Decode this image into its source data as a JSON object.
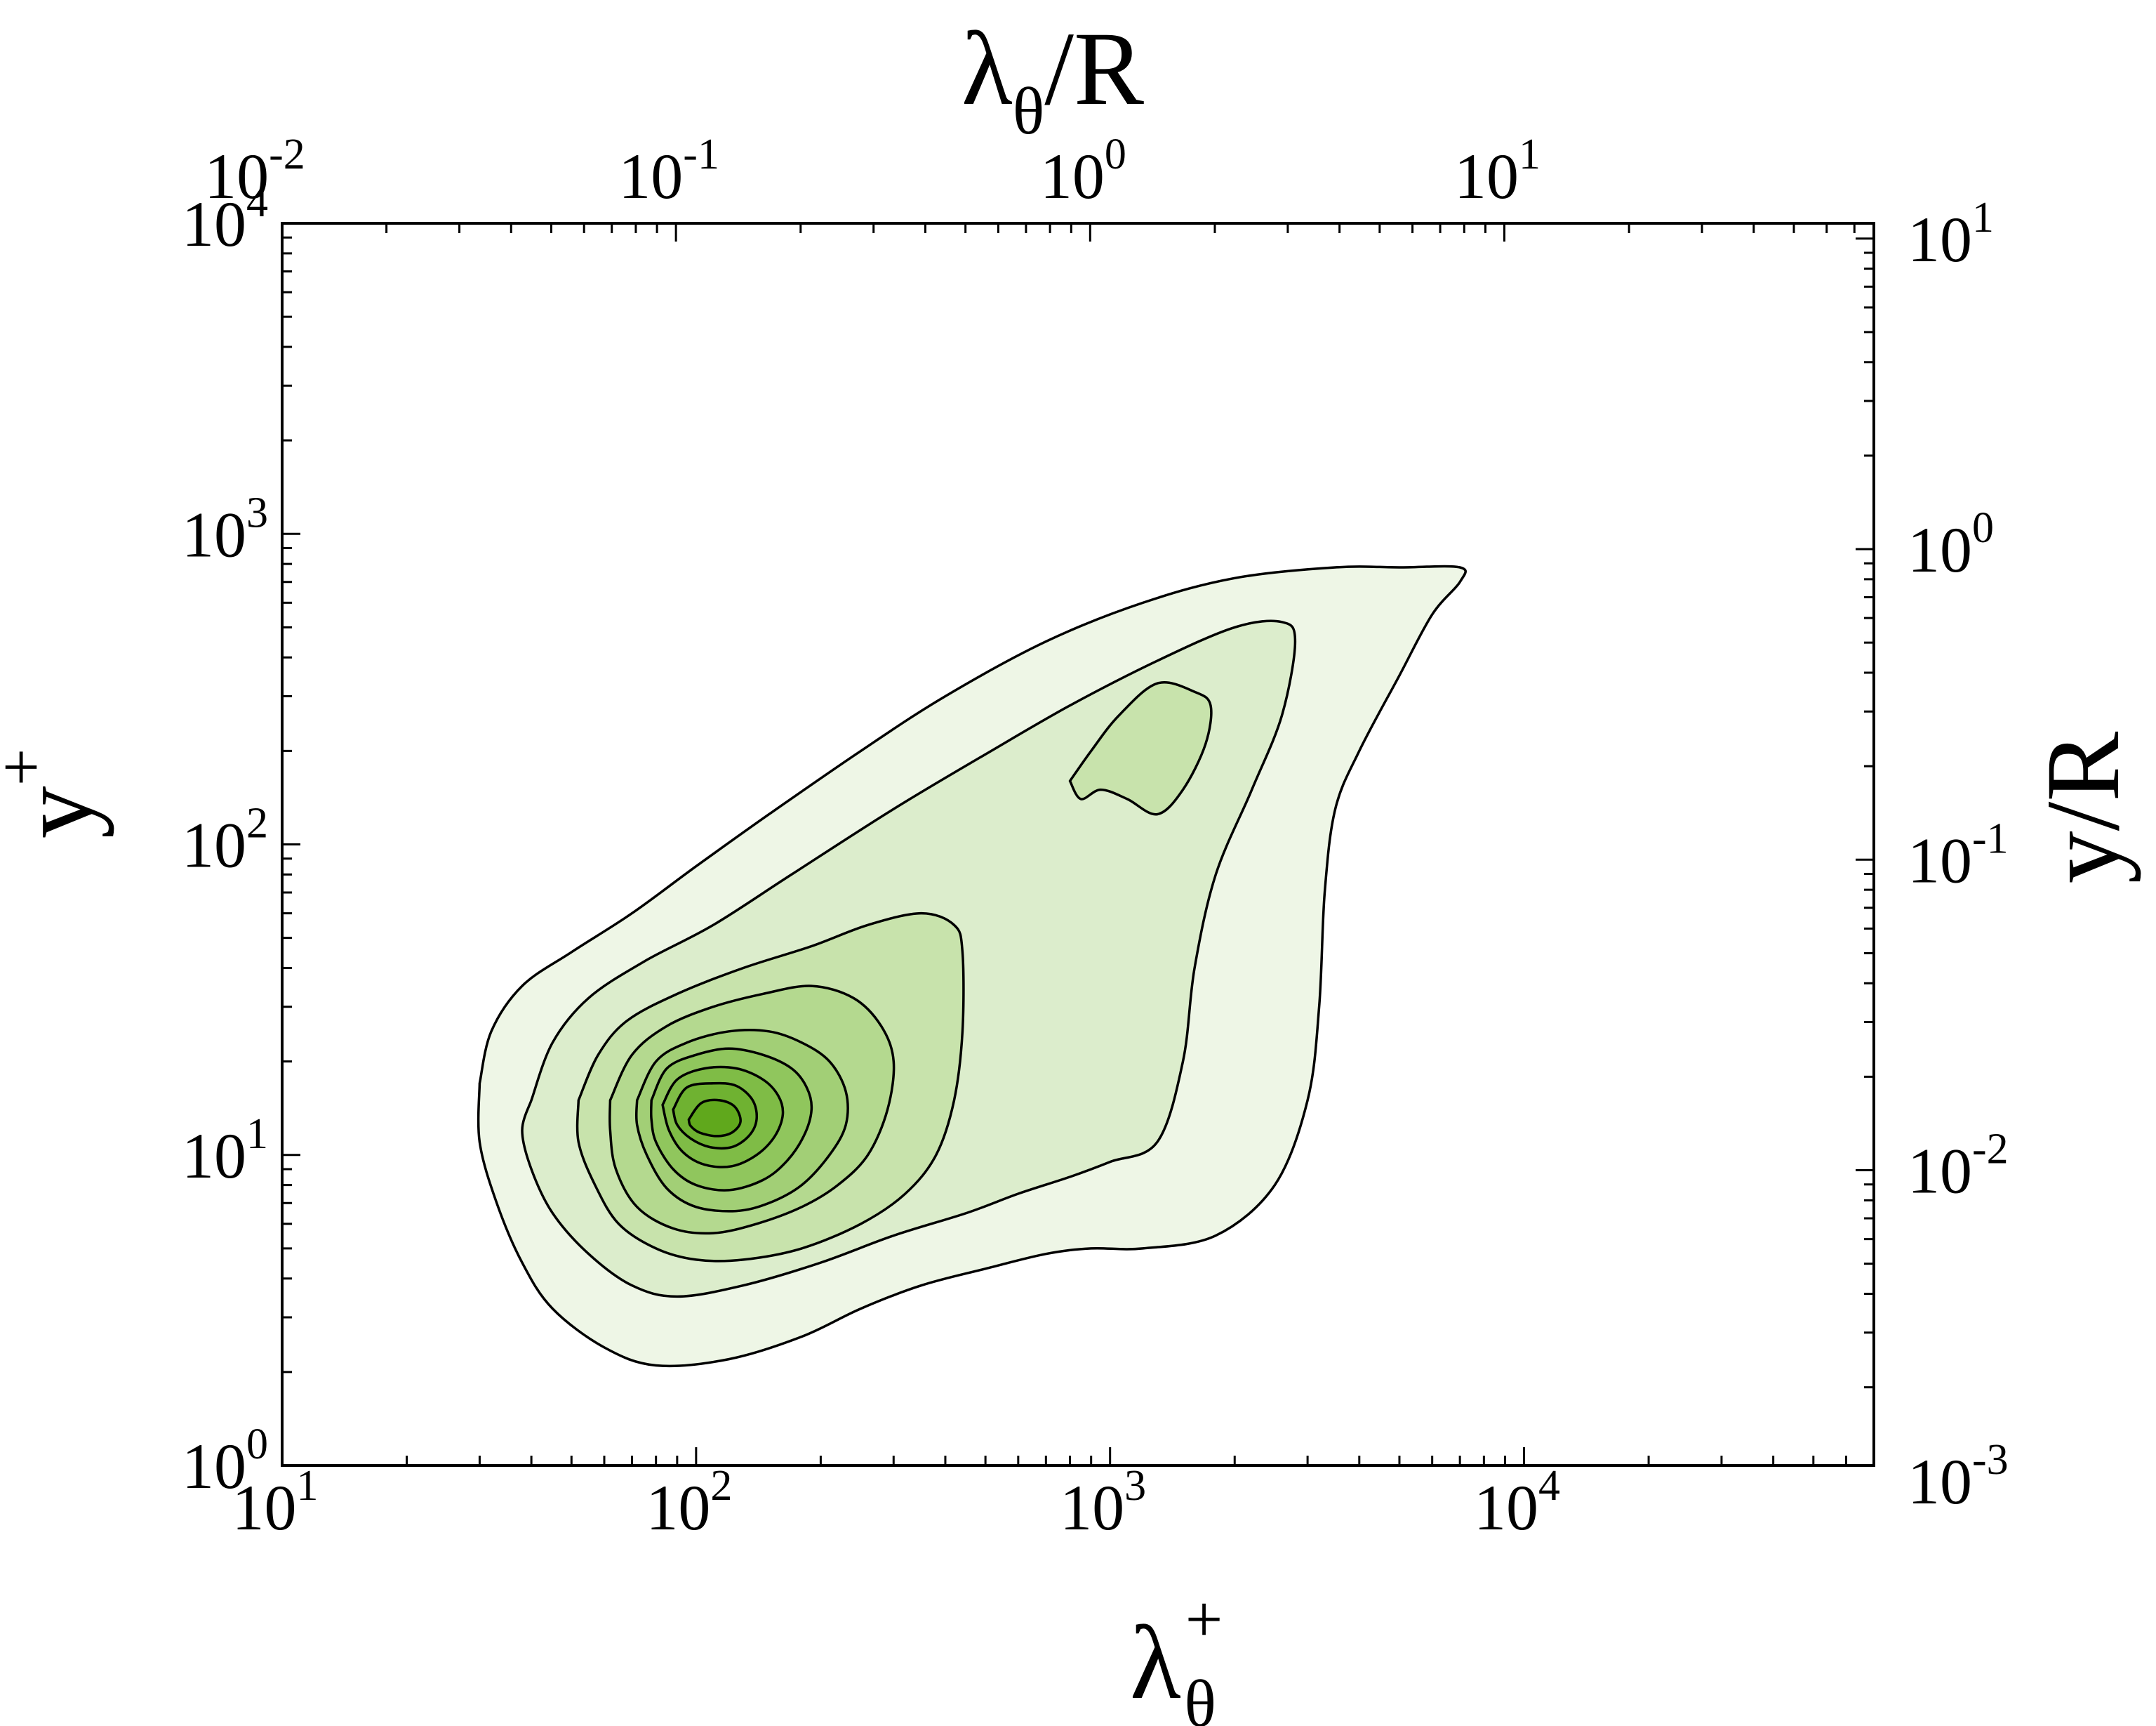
{
  "chart_data": {
    "type": "contour",
    "colors": {
      "levels": [
        "#eef6e6",
        "#dcedcc",
        "#c8e3ac",
        "#b4d98f",
        "#a2cf76",
        "#90c65d",
        "#7fbc46",
        "#6fb231",
        "#60a81c"
      ],
      "line": "#000000",
      "frame": "#000000"
    },
    "x_bottom": {
      "label_main": "λ",
      "label_sub": "θ",
      "label_sup": "+",
      "scale": "log",
      "range": [
        10,
        70000
      ],
      "ticks": [
        {
          "base": "10",
          "exp": "1",
          "value": 10
        },
        {
          "base": "10",
          "exp": "2",
          "value": 100
        },
        {
          "base": "10",
          "exp": "3",
          "value": 1000
        },
        {
          "base": "10",
          "exp": "4",
          "value": 10000
        }
      ]
    },
    "x_top": {
      "label_main": "λ",
      "label_sub": "θ",
      "label_rest": "/R",
      "scale": "log",
      "range": [
        0.0112,
        78
      ],
      "ticks": [
        {
          "base": "10",
          "exp": "-2",
          "value": 0.01
        },
        {
          "base": "10",
          "exp": "-1",
          "value": 0.1
        },
        {
          "base": "10",
          "exp": "0",
          "value": 1
        },
        {
          "base": "10",
          "exp": "1",
          "value": 10
        }
      ]
    },
    "y_left": {
      "label_main": "y",
      "label_sup": "+",
      "scale": "log",
      "range": [
        1,
        10000
      ],
      "ticks": [
        {
          "base": "10",
          "exp": "0",
          "value": 1
        },
        {
          "base": "10",
          "exp": "1",
          "value": 10
        },
        {
          "base": "10",
          "exp": "2",
          "value": 100
        },
        {
          "base": "10",
          "exp": "3",
          "value": 1000
        },
        {
          "base": "10",
          "exp": "4",
          "value": 10000
        }
      ]
    },
    "y_right": {
      "label": "y/R",
      "scale": "log",
      "range": [
        0.00112,
        11.2
      ],
      "ticks": [
        {
          "base": "10",
          "exp": "-3",
          "value": 0.001
        },
        {
          "base": "10",
          "exp": "-2",
          "value": 0.01
        },
        {
          "base": "10",
          "exp": "-1",
          "value": 0.1
        },
        {
          "base": "10",
          "exp": "0",
          "value": 1
        },
        {
          "base": "10",
          "exp": "1",
          "value": 10
        }
      ]
    },
    "contours": [
      {
        "level": 1,
        "points": [
          [
            30,
            17
          ],
          [
            32,
            25
          ],
          [
            38,
            35
          ],
          [
            50,
            45
          ],
          [
            70,
            60
          ],
          [
            100,
            85
          ],
          [
            150,
            125
          ],
          [
            250,
            200
          ],
          [
            400,
            300
          ],
          [
            700,
            450
          ],
          [
            1200,
            600
          ],
          [
            2000,
            720
          ],
          [
            3500,
            780
          ],
          [
            5000,
            780
          ],
          [
            7000,
            780
          ],
          [
            7000,
            700
          ],
          [
            6000,
            550
          ],
          [
            5000,
            350
          ],
          [
            4000,
            200
          ],
          [
            3500,
            130
          ],
          [
            3300,
            70
          ],
          [
            3200,
            30
          ],
          [
            3000,
            15
          ],
          [
            2500,
            8
          ],
          [
            1800,
            5.5
          ],
          [
            1200,
            5
          ],
          [
            900,
            5
          ],
          [
            700,
            4.8
          ],
          [
            500,
            4.3
          ],
          [
            350,
            3.8
          ],
          [
            250,
            3.2
          ],
          [
            180,
            2.6
          ],
          [
            120,
            2.2
          ],
          [
            80,
            2.1
          ],
          [
            60,
            2.4
          ],
          [
            45,
            3.2
          ],
          [
            38,
            4.5
          ],
          [
            33,
            7
          ],
          [
            30,
            11
          ],
          [
            30,
            17
          ]
        ]
      },
      {
        "level": 2,
        "points": [
          [
            40,
            15
          ],
          [
            45,
            23
          ],
          [
            55,
            32
          ],
          [
            75,
            42
          ],
          [
            110,
            55
          ],
          [
            170,
            80
          ],
          [
            300,
            130
          ],
          [
            500,
            195
          ],
          [
            800,
            280
          ],
          [
            1300,
            390
          ],
          [
            2000,
            500
          ],
          [
            2600,
            520
          ],
          [
            2800,
            450
          ],
          [
            2600,
            260
          ],
          [
            2200,
            150
          ],
          [
            1800,
            80
          ],
          [
            1600,
            40
          ],
          [
            1500,
            20
          ],
          [
            1300,
            11
          ],
          [
            1000,
            9.5
          ],
          [
            800,
            8.5
          ],
          [
            600,
            7.5
          ],
          [
            450,
            6.5
          ],
          [
            300,
            5.5
          ],
          [
            200,
            4.5
          ],
          [
            130,
            3.8
          ],
          [
            90,
            3.5
          ],
          [
            70,
            3.8
          ],
          [
            55,
            4.8
          ],
          [
            45,
            6.5
          ],
          [
            40,
            9
          ],
          [
            38,
            12
          ],
          [
            40,
            15
          ]
        ]
      },
      {
        "level": 3,
        "points": [
          [
            52,
            15
          ],
          [
            58,
            21
          ],
          [
            68,
            27
          ],
          [
            90,
            33
          ],
          [
            130,
            40
          ],
          [
            190,
            47
          ],
          [
            260,
            55
          ],
          [
            350,
            60
          ],
          [
            420,
            55
          ],
          [
            440,
            45
          ],
          [
            440,
            25
          ],
          [
            420,
            15
          ],
          [
            380,
            10
          ],
          [
            320,
            7.5
          ],
          [
            250,
            6
          ],
          [
            180,
            5
          ],
          [
            130,
            4.6
          ],
          [
            100,
            4.6
          ],
          [
            80,
            5
          ],
          [
            65,
            6
          ],
          [
            57,
            8
          ],
          [
            52,
            11
          ],
          [
            52,
            15
          ]
        ]
      },
      {
        "level": 3,
        "points": [
          [
            800,
            160
          ],
          [
            900,
            200
          ],
          [
            1050,
            260
          ],
          [
            1300,
            330
          ],
          [
            1600,
            310
          ],
          [
            1750,
            280
          ],
          [
            1700,
            210
          ],
          [
            1500,
            150
          ],
          [
            1300,
            125
          ],
          [
            1100,
            140
          ],
          [
            950,
            150
          ],
          [
            850,
            140
          ],
          [
            800,
            160
          ]
        ]
      },
      {
        "level": 4,
        "points": [
          [
            62,
            15
          ],
          [
            70,
            21
          ],
          [
            85,
            26
          ],
          [
            110,
            30
          ],
          [
            145,
            33
          ],
          [
            190,
            35
          ],
          [
            240,
            32
          ],
          [
            280,
            26
          ],
          [
            300,
            20
          ],
          [
            290,
            14
          ],
          [
            260,
            10
          ],
          [
            220,
            8
          ],
          [
            180,
            6.8
          ],
          [
            140,
            6
          ],
          [
            110,
            5.6
          ],
          [
            88,
            5.8
          ],
          [
            72,
            6.8
          ],
          [
            64,
            9
          ],
          [
            62,
            12
          ],
          [
            62,
            15
          ]
        ]
      },
      {
        "level": 5,
        "points": [
          [
            72,
            15
          ],
          [
            80,
            20
          ],
          [
            95,
            23
          ],
          [
            120,
            25
          ],
          [
            150,
            25
          ],
          [
            180,
            23
          ],
          [
            210,
            20
          ],
          [
            230,
            16
          ],
          [
            230,
            12.5
          ],
          [
            210,
            10
          ],
          [
            180,
            8
          ],
          [
            150,
            7
          ],
          [
            125,
            6.6
          ],
          [
            100,
            6.8
          ],
          [
            85,
            7.8
          ],
          [
            76,
            10
          ],
          [
            72,
            12.5
          ],
          [
            72,
            15
          ]
        ]
      },
      {
        "level": 6,
        "points": [
          [
            78,
            15
          ],
          [
            85,
            19
          ],
          [
            100,
            21
          ],
          [
            120,
            22
          ],
          [
            145,
            21
          ],
          [
            170,
            19
          ],
          [
            185,
            16.5
          ],
          [
            190,
            14
          ],
          [
            182,
            11.5
          ],
          [
            165,
            9.5
          ],
          [
            145,
            8.3
          ],
          [
            120,
            7.7
          ],
          [
            100,
            8
          ],
          [
            88,
            9
          ],
          [
            80,
            11
          ],
          [
            78,
            13
          ],
          [
            78,
            15
          ]
        ]
      },
      {
        "level": 7,
        "points": [
          [
            83,
            14.5
          ],
          [
            90,
            17.5
          ],
          [
            105,
            19
          ],
          [
            125,
            19
          ],
          [
            145,
            17.5
          ],
          [
            158,
            15.5
          ],
          [
            162,
            13.5
          ],
          [
            155,
            11.5
          ],
          [
            140,
            10
          ],
          [
            122,
            9.2
          ],
          [
            105,
            9.3
          ],
          [
            93,
            10.2
          ],
          [
            86,
            12
          ],
          [
            83,
            14.5
          ]
        ]
      },
      {
        "level": 8,
        "points": [
          [
            88,
            14
          ],
          [
            95,
            16.5
          ],
          [
            110,
            17
          ],
          [
            125,
            16.7
          ],
          [
            137,
            15
          ],
          [
            140,
            13
          ],
          [
            134,
            11.5
          ],
          [
            122,
            10.6
          ],
          [
            108,
            10.6
          ],
          [
            97,
            11.3
          ],
          [
            90,
            12.5
          ],
          [
            88,
            14
          ]
        ]
      },
      {
        "level": 9,
        "points": [
          [
            96,
            13
          ],
          [
            103,
            14.7
          ],
          [
            114,
            15
          ],
          [
            124,
            14.3
          ],
          [
            128,
            12.8
          ],
          [
            122,
            11.8
          ],
          [
            112,
            11.5
          ],
          [
            102,
            11.8
          ],
          [
            97,
            12.4
          ],
          [
            96,
            13
          ]
        ]
      }
    ]
  }
}
